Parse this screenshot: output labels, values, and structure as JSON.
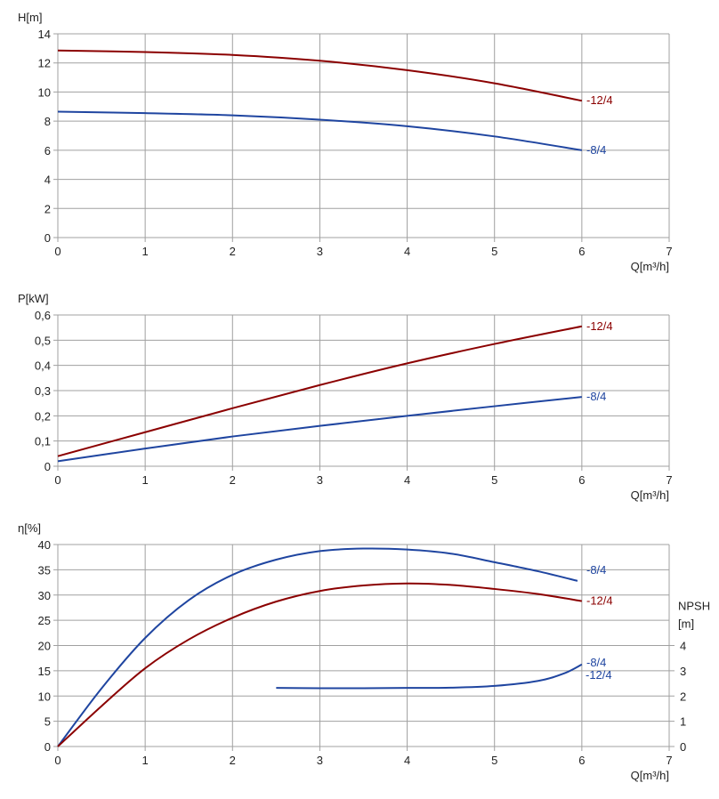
{
  "colors": {
    "c12": "#8b0000",
    "c8": "#1f45a0",
    "grid": "#a0a0a0"
  },
  "chart_data": [
    {
      "type": "line",
      "title": "",
      "ylabel": "H[m]",
      "xlabel": "Q[m³/h]",
      "xlim": [
        0,
        7
      ],
      "ylim": [
        0,
        14
      ],
      "xticks": [
        "0",
        "1",
        "2",
        "3",
        "4",
        "5",
        "6",
        "7"
      ],
      "yticks": [
        "0",
        "2",
        "4",
        "6",
        "8",
        "10",
        "12",
        "14"
      ],
      "grid": true,
      "x": [
        0,
        1,
        2,
        3,
        4,
        5,
        6
      ],
      "series": [
        {
          "name": "12/4",
          "color": "#8b0000",
          "values": [
            12.85,
            12.75,
            12.55,
            12.15,
            11.5,
            10.6,
            9.4
          ]
        },
        {
          "name": "8/4",
          "color": "#1f45a0",
          "values": [
            8.65,
            8.55,
            8.4,
            8.1,
            7.65,
            6.95,
            6.0
          ]
        }
      ]
    },
    {
      "type": "line",
      "title": "",
      "ylabel": "P[kW]",
      "xlabel": "Q[m³/h]",
      "xlim": [
        0,
        7
      ],
      "ylim": [
        0,
        0.6
      ],
      "xticks": [
        "0",
        "1",
        "2",
        "3",
        "4",
        "5",
        "6",
        "7"
      ],
      "yticks": [
        "0",
        "0,1",
        "0,2",
        "0,3",
        "0,4",
        "0,5",
        "0,6"
      ],
      "grid": true,
      "x": [
        0,
        1,
        2,
        3,
        4,
        5,
        6
      ],
      "series": [
        {
          "name": "12/4",
          "color": "#8b0000",
          "values": [
            0.04,
            0.135,
            0.23,
            0.322,
            0.408,
            0.485,
            0.555
          ]
        },
        {
          "name": "8/4",
          "color": "#1f45a0",
          "values": [
            0.02,
            0.07,
            0.118,
            0.16,
            0.2,
            0.238,
            0.275
          ]
        }
      ]
    },
    {
      "type": "line",
      "title": "",
      "ylabel": "η[%]",
      "y2label": "NPSH\n[m]",
      "y2label_lines": [
        "NPSH",
        "[m]"
      ],
      "xlabel": "Q[m³/h]",
      "xlim": [
        0,
        7
      ],
      "ylim": [
        0,
        40
      ],
      "y2lim": [
        0,
        8
      ],
      "xticks": [
        "0",
        "1",
        "2",
        "3",
        "4",
        "5",
        "6",
        "7"
      ],
      "yticks": [
        "0",
        "5",
        "10",
        "15",
        "20",
        "25",
        "30",
        "35",
        "40"
      ],
      "y2ticks": [
        "0",
        "1",
        "2",
        "3",
        "4"
      ],
      "grid": true,
      "series": [
        {
          "name": "8/4",
          "color": "#1f45a0",
          "axis": "left",
          "x": [
            0,
            0.5,
            1,
            1.5,
            2,
            2.5,
            3,
            3.5,
            4,
            4.5,
            5,
            5.5,
            5.95
          ],
          "values": [
            0,
            11.5,
            21.5,
            29,
            34,
            37,
            38.7,
            39.2,
            39,
            38.2,
            36.5,
            34.7,
            32.8
          ]
        },
        {
          "name": "12/4",
          "color": "#8b0000",
          "axis": "left",
          "x": [
            0,
            0.5,
            1,
            1.5,
            2,
            2.5,
            3,
            3.5,
            4,
            4.5,
            5,
            5.5,
            6
          ],
          "values": [
            0,
            8,
            15.5,
            21.2,
            25.5,
            28.7,
            30.8,
            31.9,
            32.3,
            32,
            31.2,
            30.2,
            28.8
          ]
        },
        {
          "name": "NPSH 8/4 / 12/4",
          "label_a": "8/4",
          "label_b": "12/4",
          "color": "#1f45a0",
          "axis": "right",
          "x": [
            2.5,
            3,
            3.5,
            4,
            4.5,
            5,
            5.5,
            5.8,
            6
          ],
          "values": [
            2.32,
            2.31,
            2.31,
            2.32,
            2.33,
            2.4,
            2.6,
            2.9,
            3.25
          ]
        }
      ]
    }
  ]
}
